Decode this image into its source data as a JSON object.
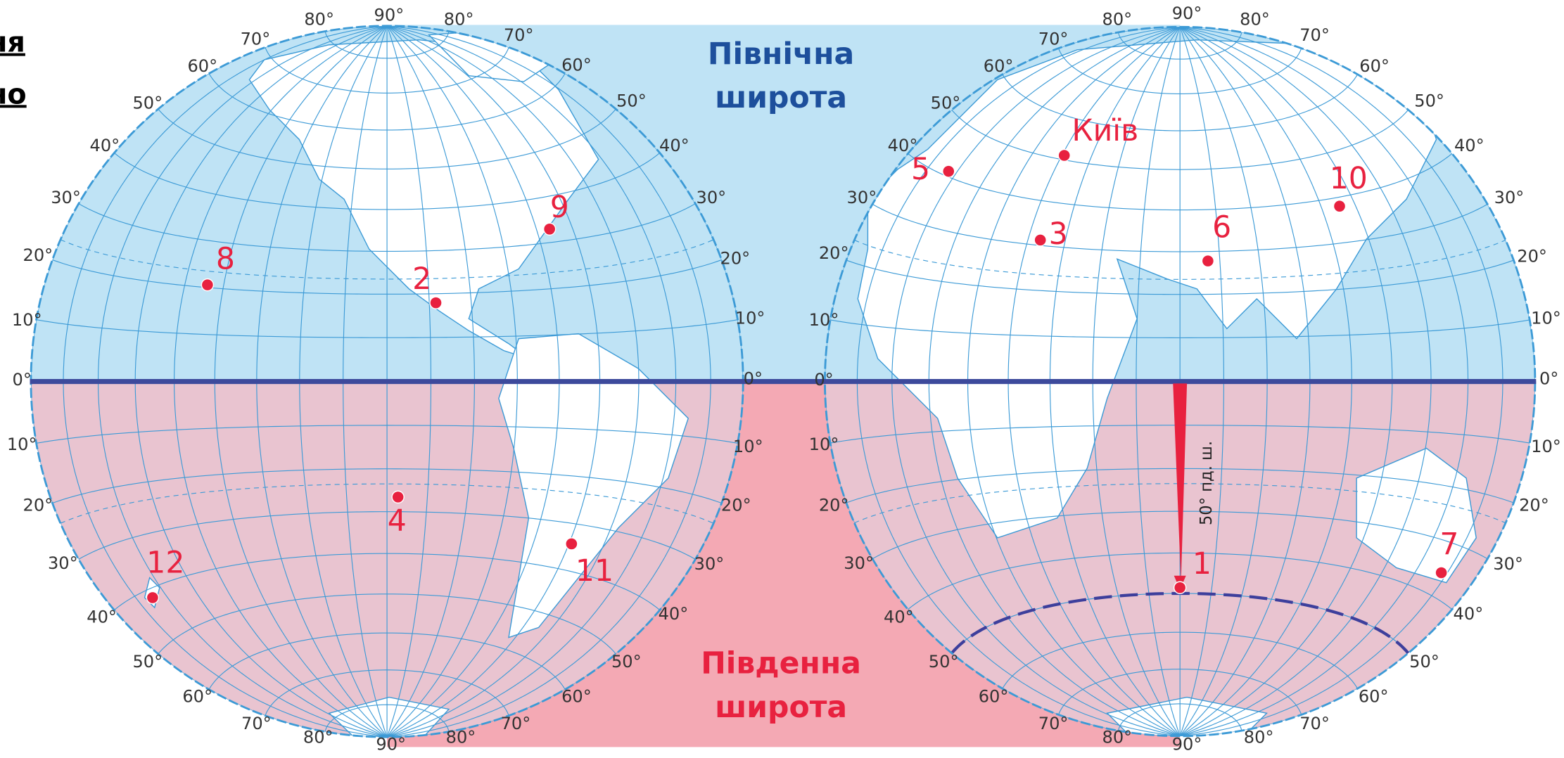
{
  "header_fragments": [
    "ня",
    "но"
  ],
  "regions": {
    "north": [
      "Північна",
      "широта"
    ],
    "south": [
      "Південна",
      "широта"
    ]
  },
  "degree_labels": [
    "80°",
    "90°",
    "80°",
    "70°",
    "70°",
    "60°",
    "60°",
    "50°",
    "50°",
    "40°",
    "40°",
    "30°",
    "30°",
    "20°",
    "20°",
    "10°",
    "10°",
    "0°",
    "0°",
    "10°",
    "10°",
    "20°",
    "20°",
    "30°",
    "30°",
    "40°",
    "40°",
    "50°",
    "50°",
    "60°",
    "60°",
    "70°",
    "70°",
    "80°",
    "80°",
    "90°",
    "80°",
    "90°",
    "80°",
    "70°",
    "70°",
    "60°",
    "60°",
    "50°",
    "50°",
    "40°",
    "40°",
    "30°",
    "30°",
    "20°",
    "20°",
    "10°",
    "10°",
    "0°",
    "0°",
    "10°",
    "10°",
    "20°",
    "20°",
    "30°",
    "30°",
    "40°",
    "40°",
    "50°",
    "50°",
    "60°",
    "60°",
    "70°",
    "70°",
    "80°",
    "80°",
    "90°"
  ],
  "places": [
    {
      "label": "8"
    },
    {
      "label": "2"
    },
    {
      "label": "9"
    },
    {
      "label": "4"
    },
    {
      "label": "12"
    },
    {
      "label": "11"
    },
    {
      "label": "5"
    },
    {
      "label": "Київ"
    },
    {
      "label": "3"
    },
    {
      "label": "6"
    },
    {
      "label": "10"
    },
    {
      "label": "1"
    },
    {
      "label": "7"
    }
  ],
  "arrow_label": "50° пд. ш."
}
